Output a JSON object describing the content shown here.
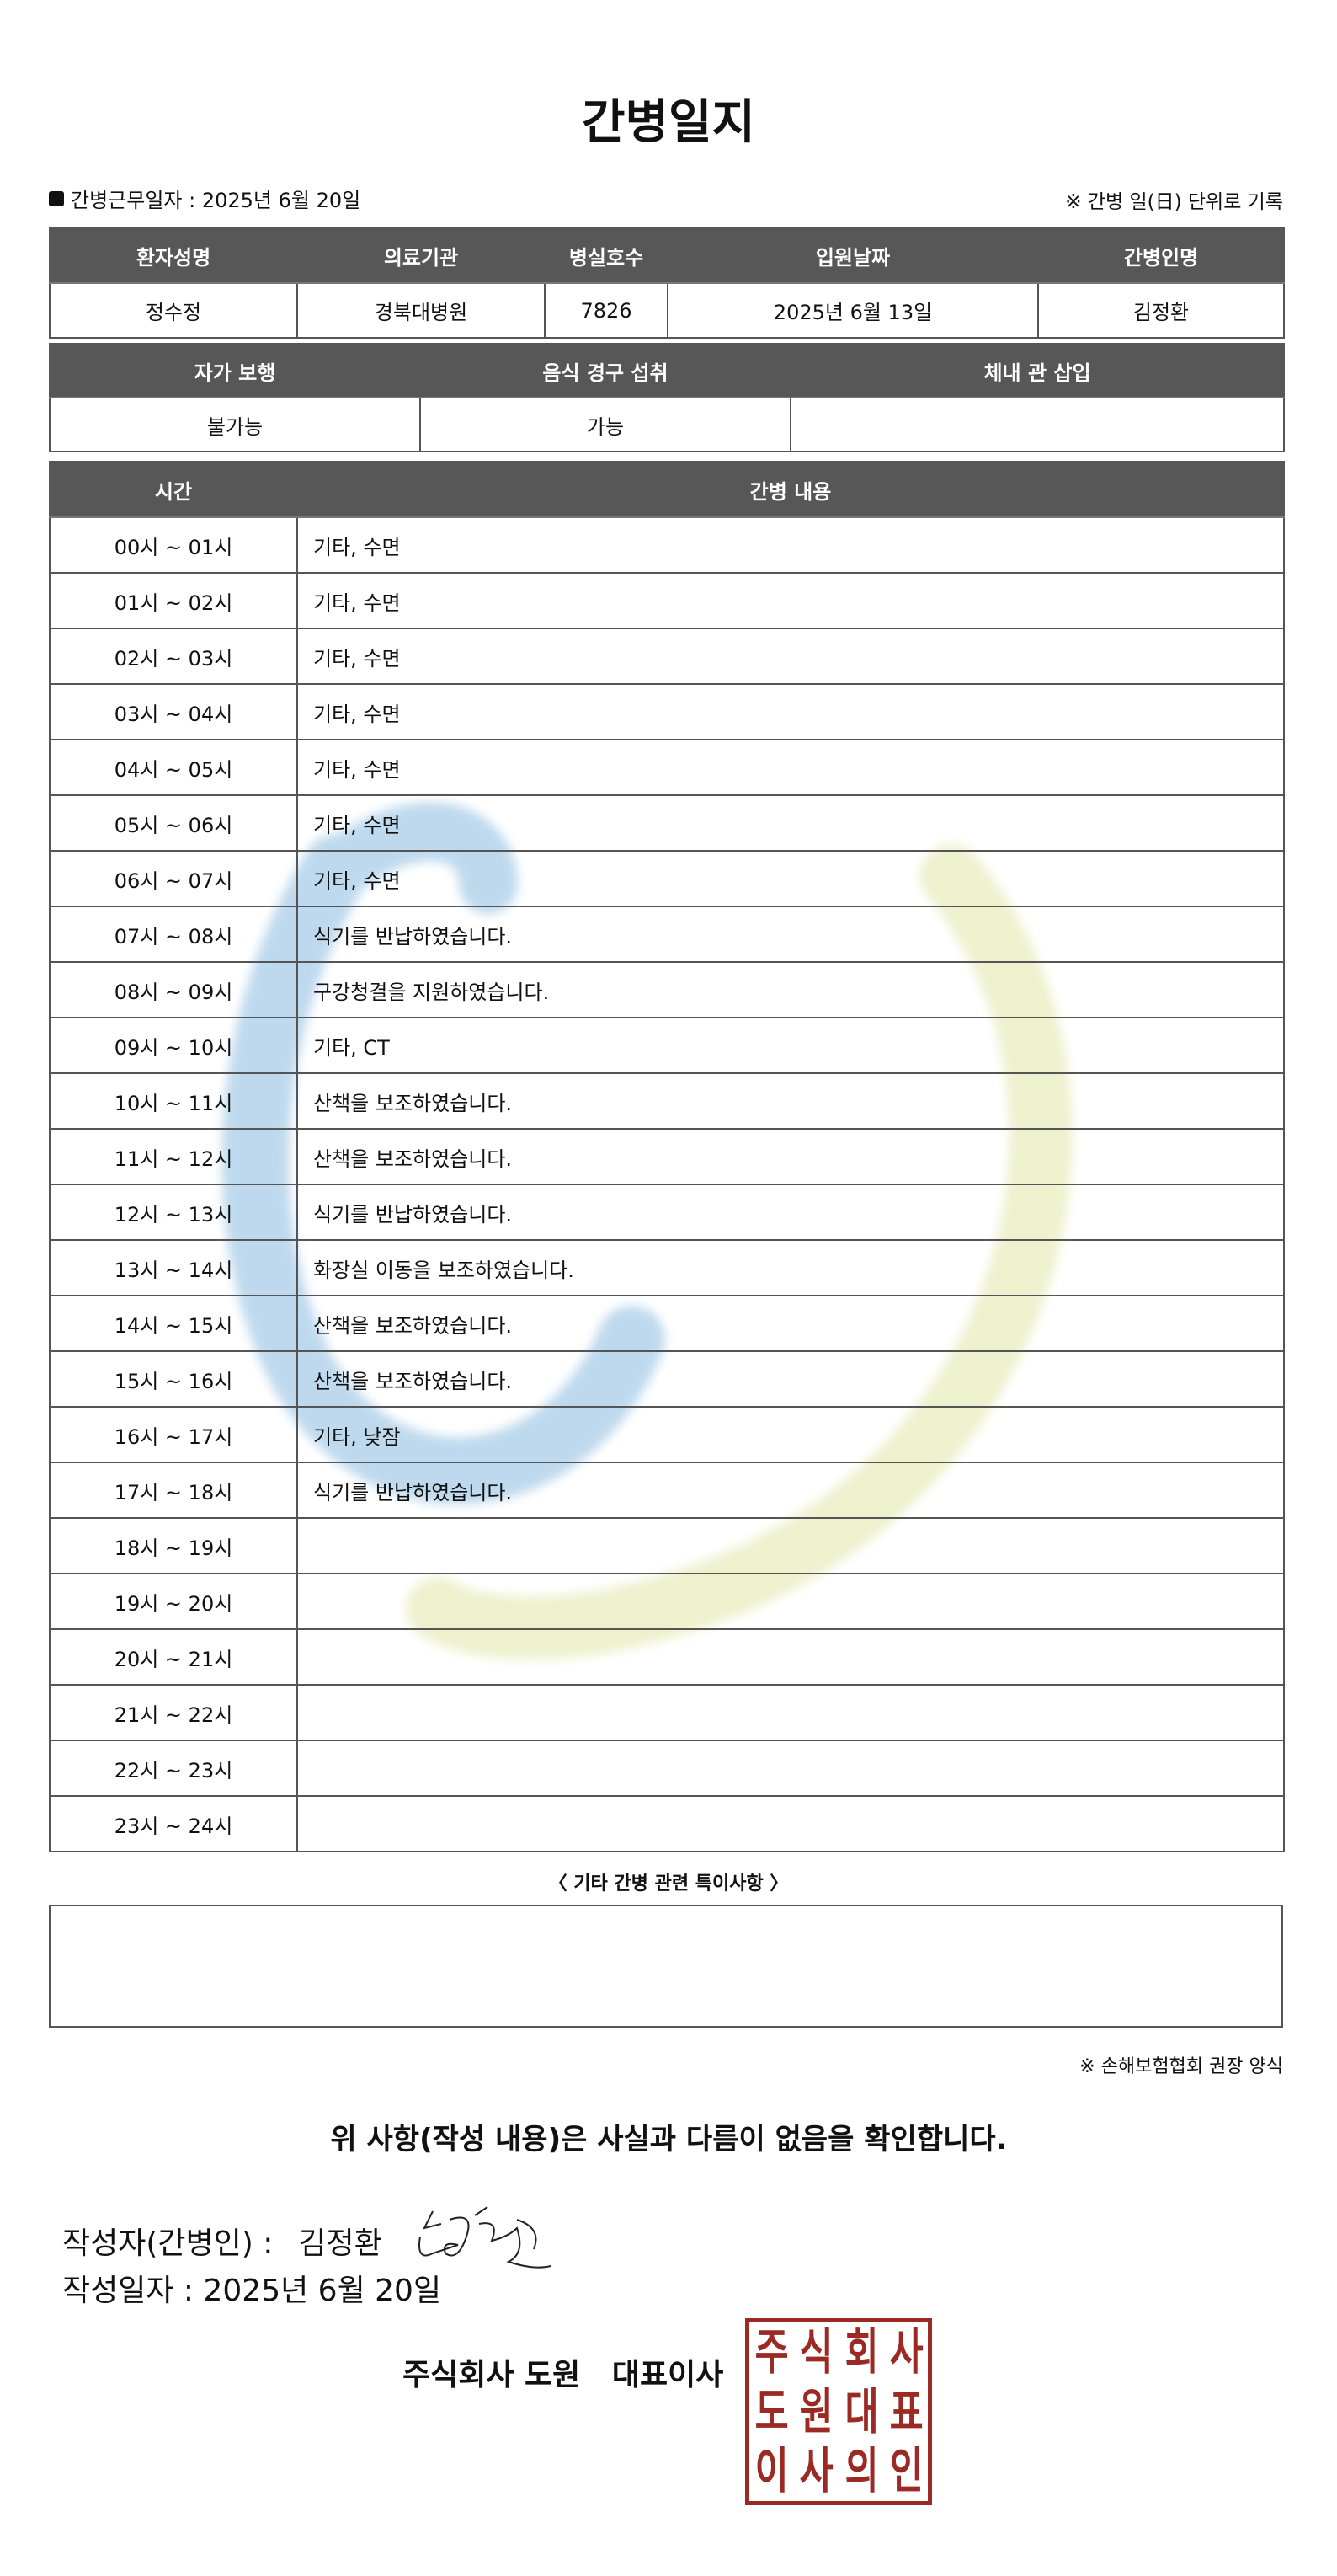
{
  "title": "간병일지",
  "work_date_label": "간병근무일자  :  2025년 6월 20일",
  "unit_note": "※ 간병 일(日) 단위로 기록",
  "info": {
    "headers": [
      "환자성명",
      "의료기관",
      "병실호수",
      "입원날짜",
      "간병인명"
    ],
    "values": [
      "정수정",
      "경북대병원",
      "7826",
      "2025년 6월 13일",
      "김정환"
    ]
  },
  "status": {
    "headers": [
      "자가 보행",
      "음식 경구 섭취",
      "체내 관 삽입"
    ],
    "values": [
      "불가능",
      "가능",
      ""
    ]
  },
  "log": {
    "headers": [
      "시간",
      "간병 내용"
    ],
    "rows": [
      [
        "00시 ~ 01시",
        "기타, 수면"
      ],
      [
        "01시 ~ 02시",
        "기타, 수면"
      ],
      [
        "02시 ~ 03시",
        "기타, 수면"
      ],
      [
        "03시 ~ 04시",
        "기타, 수면"
      ],
      [
        "04시 ~ 05시",
        "기타, 수면"
      ],
      [
        "05시 ~ 06시",
        "기타, 수면"
      ],
      [
        "06시 ~ 07시",
        "기타, 수면"
      ],
      [
        "07시 ~ 08시",
        "식기를 반납하였습니다."
      ],
      [
        "08시 ~ 09시",
        "구강청결을 지원하였습니다."
      ],
      [
        "09시 ~ 10시",
        "기타, CT"
      ],
      [
        "10시 ~ 11시",
        "산책을 보조하였습니다."
      ],
      [
        "11시 ~ 12시",
        "산책을 보조하였습니다."
      ],
      [
        "12시 ~ 13시",
        "식기를 반납하였습니다."
      ],
      [
        "13시 ~ 14시",
        "화장실 이동을 보조하였습니다."
      ],
      [
        "14시 ~ 15시",
        "산책을 보조하였습니다."
      ],
      [
        "15시 ~ 16시",
        "산책을 보조하였습니다."
      ],
      [
        "16시 ~ 17시",
        "기타, 낮잠"
      ],
      [
        "17시 ~ 18시",
        "식기를 반납하였습니다."
      ],
      [
        "18시 ~ 19시",
        ""
      ],
      [
        "19시 ~ 20시",
        ""
      ],
      [
        "20시 ~ 21시",
        ""
      ],
      [
        "21시 ~ 22시",
        ""
      ],
      [
        "22시 ~ 23시",
        ""
      ],
      [
        "23시 ~ 24시",
        ""
      ]
    ]
  },
  "special_label": "〈 기타 간병 관련 특이사항 〉",
  "special_notes": "",
  "form_note": "※ 손해보험협회 권장 양식",
  "confirm": "위 사항(작성 내용)은 사실과 다름이 없음을 확인합니다.",
  "writer_label": "작성자(간병인) :",
  "writer_name": "김정환",
  "write_date": "작성일자 :   2025년 6월 20일",
  "company": "주식회사 도원   대표이사",
  "stamp_text": "주식회사도원대표이사인인",
  "colors": {
    "header_bg": "#575757",
    "stamp": "#9b2a24",
    "watermark_blue": "#b9d6ec",
    "watermark_yellow": "#eef2c8"
  }
}
